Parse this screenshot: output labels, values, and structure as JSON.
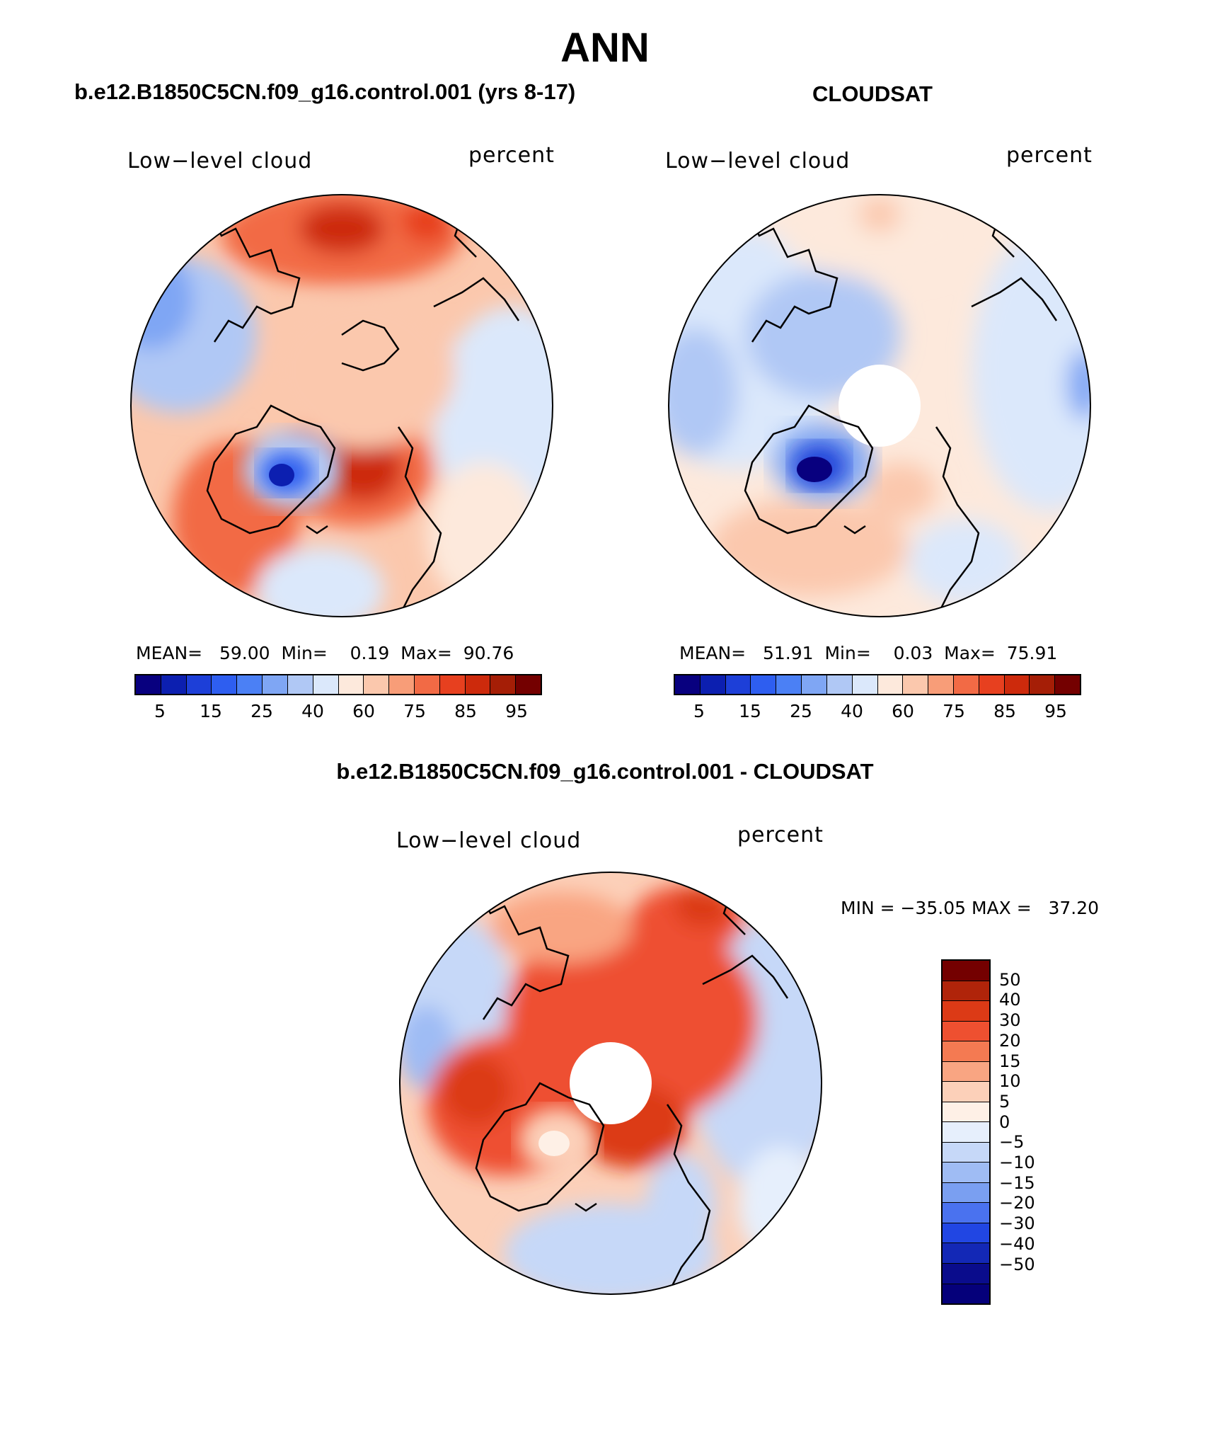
{
  "figure": {
    "season": "ANN"
  },
  "chart_data": [
    {
      "type": "heatmap",
      "projection": "north-polar-stereographic",
      "title": "b.e12.B1850C5CN.f09_g16.control.001 (yrs 8-17)",
      "variable": "Low−level cloud",
      "units": "percent",
      "stats": {
        "mean_label": "MEAN=",
        "mean": "59.00",
        "min_label": "Min=",
        "min": "0.19",
        "max_label": "Max=",
        "max": "90.76"
      },
      "colorbar": {
        "colors": [
          "#08007f",
          "#0c1fb0",
          "#1d3fd8",
          "#2e5ef0",
          "#4b80f5",
          "#7fa6f4",
          "#b0c8f5",
          "#dbe8fb",
          "#fde9dc",
          "#fbc8ad",
          "#f89d78",
          "#f26a45",
          "#e7401f",
          "#cd2a0c",
          "#a51e06",
          "#740000"
        ],
        "tick_labels": [
          "5",
          "15",
          "25",
          "40",
          "60",
          "75",
          "85",
          "95"
        ]
      }
    },
    {
      "type": "heatmap",
      "projection": "north-polar-stereographic",
      "title": "CLOUDSAT",
      "variable": "Low−level cloud",
      "units": "percent",
      "stats": {
        "mean_label": "MEAN=",
        "mean": "51.91",
        "min_label": "Min=",
        "min": "0.03",
        "max_label": "Max=",
        "max": "75.91"
      },
      "colorbar": {
        "colors": [
          "#08007f",
          "#0c1fb0",
          "#1d3fd8",
          "#2e5ef0",
          "#4b80f5",
          "#7fa6f4",
          "#b0c8f5",
          "#dbe8fb",
          "#fde9dc",
          "#fbc8ad",
          "#f89d78",
          "#f26a45",
          "#e7401f",
          "#cd2a0c",
          "#a51e06",
          "#740000"
        ],
        "tick_labels": [
          "5",
          "15",
          "25",
          "40",
          "60",
          "75",
          "85",
          "95"
        ]
      }
    },
    {
      "type": "heatmap",
      "projection": "north-polar-stereographic",
      "title": "b.e12.B1850C5CN.f09_g16.control.001 - CLOUDSAT",
      "variable": "Low−level cloud",
      "units": "percent",
      "stats": {
        "text": "MIN = −35.05 MAX =   37.20"
      },
      "colorbar": {
        "colors": [
          "#740000",
          "#b0240a",
          "#dc3a16",
          "#ee5030",
          "#f47a52",
          "#f9a582",
          "#fcd0b9",
          "#fef0e6",
          "#e6effc",
          "#c6d8f8",
          "#9fbcf4",
          "#7a9ff1",
          "#4a72ef",
          "#2146e3",
          "#1328b6",
          "#0a0c8c",
          "#05007a"
        ],
        "tick_labels": [
          "50",
          "40",
          "30",
          "20",
          "15",
          "10",
          "5",
          "0",
          "−5",
          "−10",
          "−15",
          "−20",
          "−30",
          "−40",
          "−50"
        ]
      }
    }
  ]
}
